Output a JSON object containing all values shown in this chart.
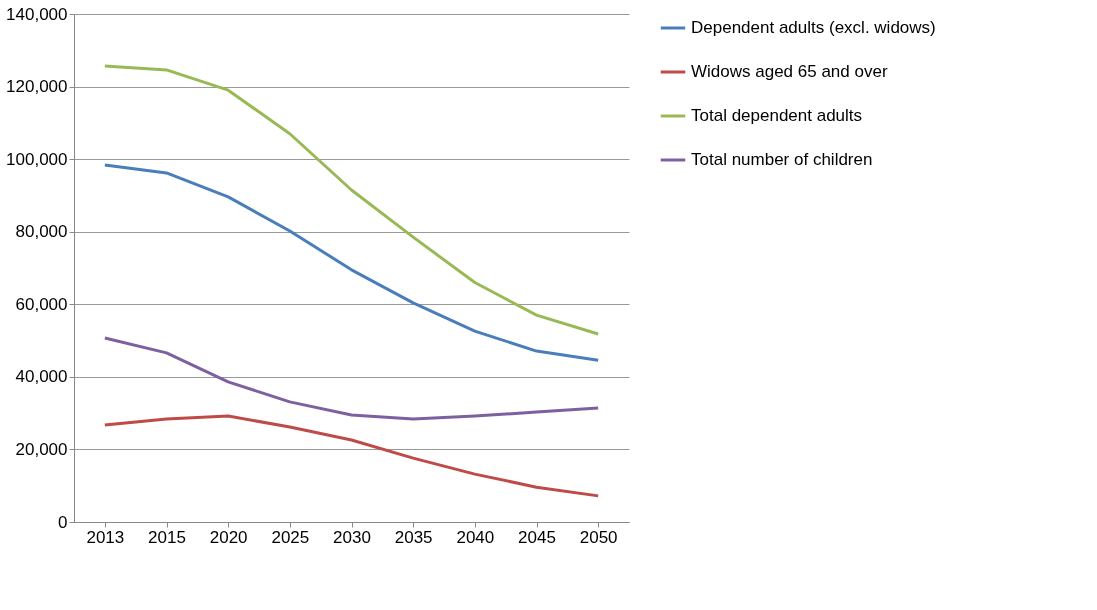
{
  "chart_data": {
    "type": "line",
    "categories": [
      "2013",
      "2015",
      "2020",
      "2025",
      "2030",
      "2035",
      "2040",
      "2045",
      "2050"
    ],
    "series": [
      {
        "name": "Dependent adults (excl. widows)",
        "color": "#4a7ebb",
        "values": [
          98400,
          96200,
          89600,
          80200,
          69500,
          60400,
          52600,
          47100,
          44600
        ]
      },
      {
        "name": "Widows aged 65 and over",
        "color": "#be4b48",
        "values": [
          26700,
          28400,
          29200,
          26200,
          22600,
          17600,
          13200,
          9600,
          7200
        ]
      },
      {
        "name": "Total dependent adults",
        "color": "#98b954",
        "values": [
          125700,
          124600,
          119000,
          107000,
          91500,
          78500,
          66000,
          57000,
          51800
        ]
      },
      {
        "name": "Total number of children",
        "color": "#7d60a0",
        "values": [
          50700,
          46600,
          38600,
          33100,
          29500,
          28400,
          29200,
          30300,
          31400
        ]
      }
    ],
    "ylim": [
      0,
      140000
    ],
    "yticks": [
      {
        "value": 0,
        "label": "0"
      },
      {
        "value": 20000,
        "label": "20,000"
      },
      {
        "value": 40000,
        "label": "40,000"
      },
      {
        "value": 60000,
        "label": "60,000"
      },
      {
        "value": 80000,
        "label": "80,000"
      },
      {
        "value": 100000,
        "label": "100,000"
      },
      {
        "value": 120000,
        "label": "120,000"
      },
      {
        "value": 140000,
        "label": "140,000"
      }
    ],
    "grid": "y",
    "legend": "right",
    "marker": "none",
    "line_style": "solid"
  }
}
